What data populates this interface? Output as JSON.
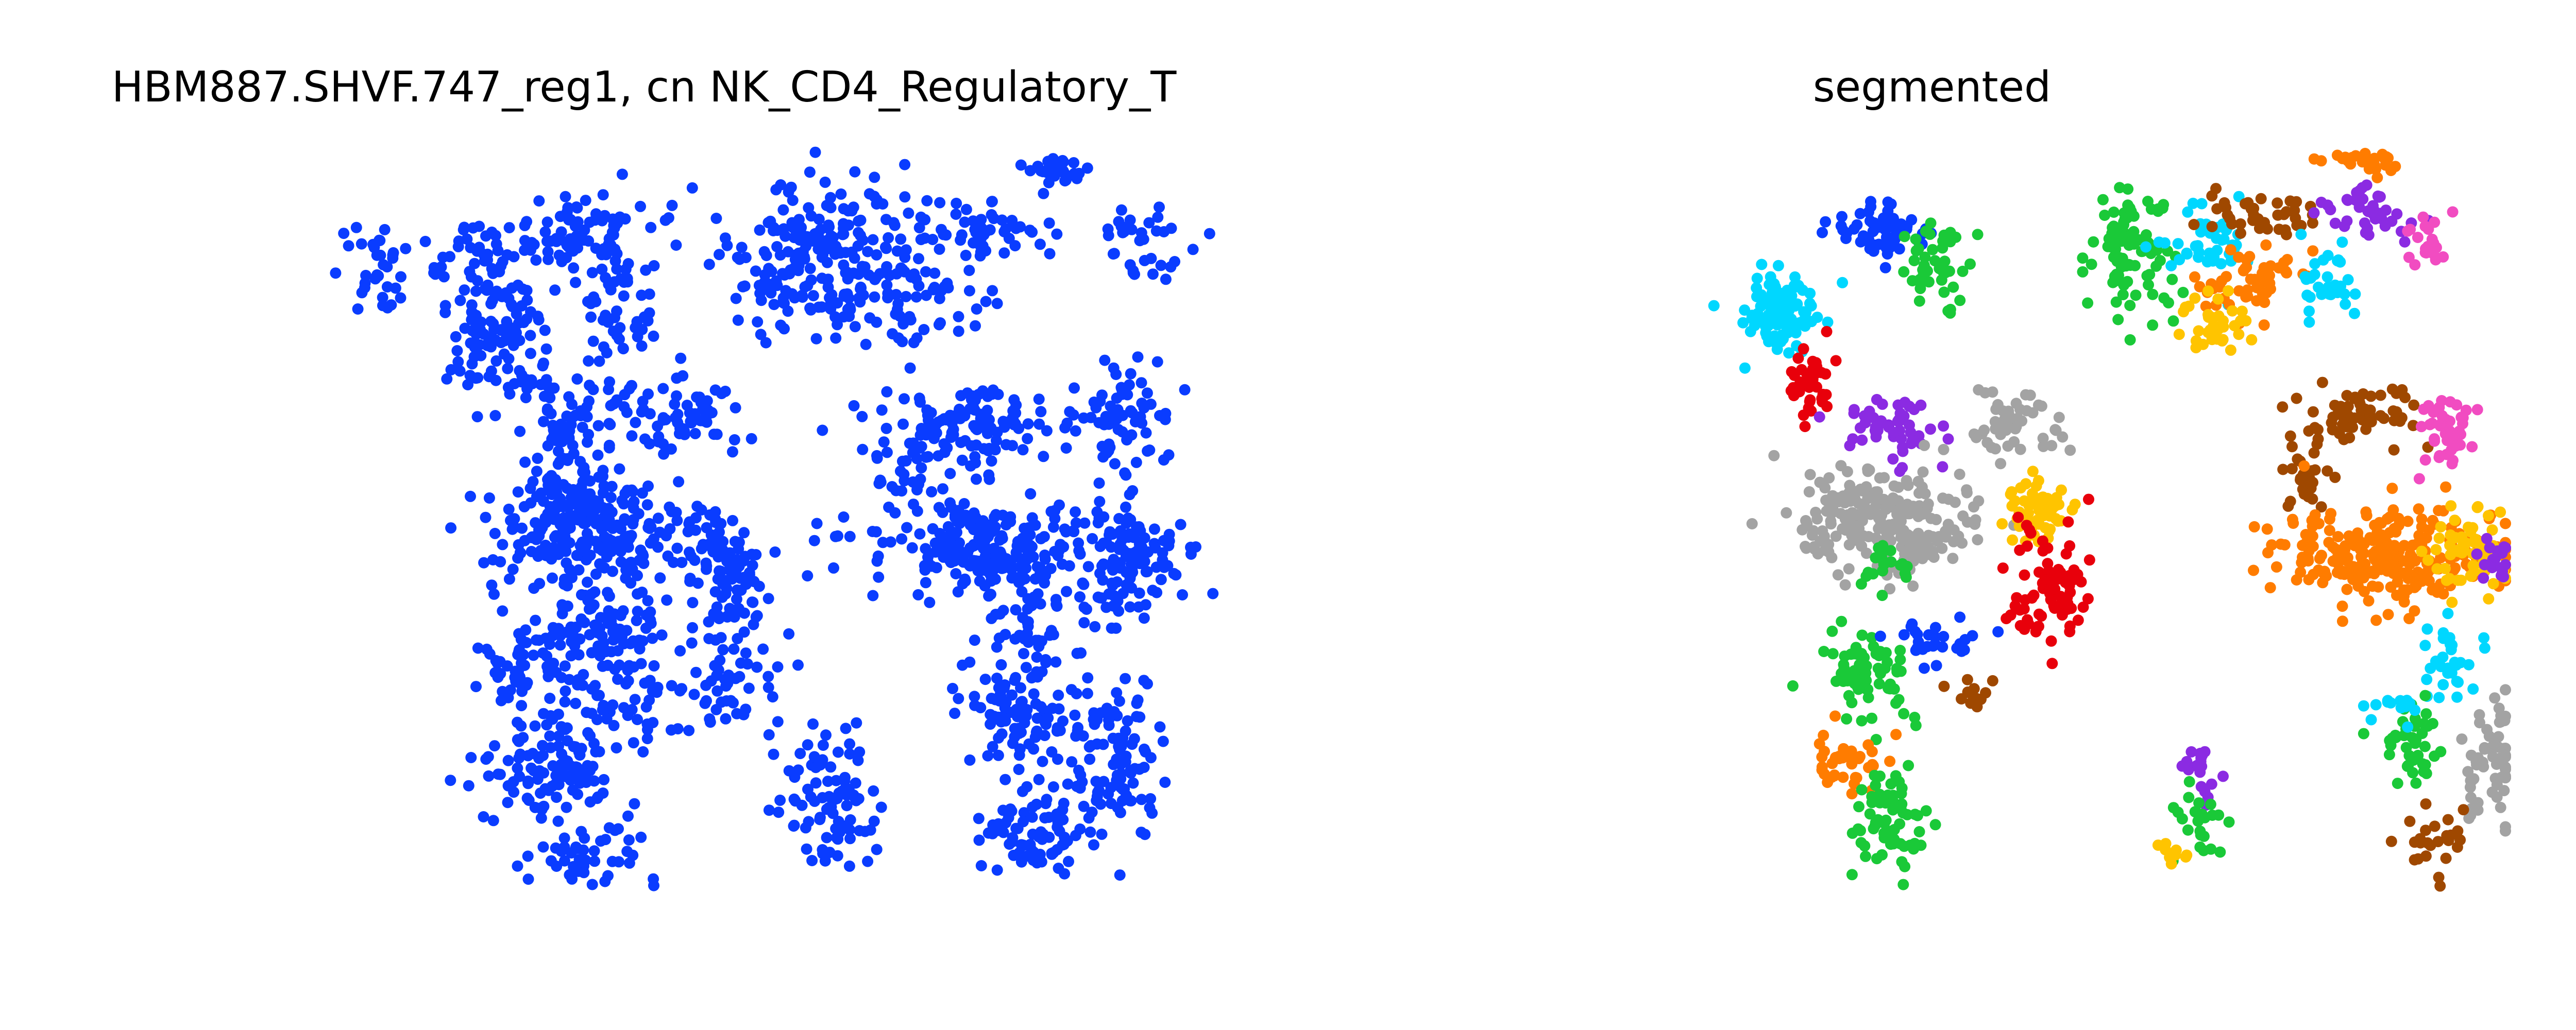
{
  "chart_data": [
    {
      "type": "scatter",
      "title": "HBM887.SHVF.747_reg1, cn NK_CD4_Regulatory_T",
      "xlabel": "",
      "ylabel": "",
      "axes_visible": false,
      "grid": false,
      "legend": "none",
      "point_color": "#0a3cff",
      "xlim": [
        0,
        100
      ],
      "ylim": [
        0,
        100
      ],
      "clusters": [
        {
          "c": [
            3,
            85
          ],
          "s": [
            2.0,
            3.5
          ],
          "n": 35
        },
        {
          "c": [
            13,
            87
          ],
          "s": [
            2.5,
            1.8
          ],
          "n": 25
        },
        {
          "c": [
            17,
            75
          ],
          "s": [
            3.0,
            5.5
          ],
          "n": 120
        },
        {
          "c": [
            27,
            89
          ],
          "s": [
            4.5,
            2.8
          ],
          "n": 90
        },
        {
          "c": [
            31,
            80
          ],
          "s": [
            2.5,
            3.5
          ],
          "n": 45
        },
        {
          "c": [
            27,
            65
          ],
          "s": [
            3.5,
            2.8
          ],
          "n": 60
        },
        {
          "c": [
            39,
            65
          ],
          "s": [
            3.0,
            2.8
          ],
          "n": 55
        },
        {
          "c": [
            26,
            55
          ],
          "s": [
            3.5,
            2.8
          ],
          "n": 80
        },
        {
          "c": [
            27,
            48
          ],
          "s": [
            5.5,
            4.0
          ],
          "n": 200
        },
        {
          "c": [
            42,
            48
          ],
          "s": [
            2.2,
            2.5
          ],
          "n": 40
        },
        {
          "c": [
            45,
            41
          ],
          "s": [
            2.3,
            4.5
          ],
          "n": 70
        },
        {
          "c": [
            30,
            35
          ],
          "s": [
            4.0,
            3.0
          ],
          "n": 80
        },
        {
          "c": [
            22,
            30
          ],
          "s": [
            3.5,
            3.5
          ],
          "n": 70
        },
        {
          "c": [
            24,
            17
          ],
          "s": [
            4.0,
            3.5
          ],
          "n": 110
        },
        {
          "c": [
            27,
            5
          ],
          "s": [
            3.5,
            2.0
          ],
          "n": 45
        },
        {
          "c": [
            33,
            26
          ],
          "s": [
            4.0,
            2.5
          ],
          "n": 40
        },
        {
          "c": [
            44,
            28
          ],
          "s": [
            3.5,
            3.0
          ],
          "n": 45
        },
        {
          "c": [
            56,
            14
          ],
          "s": [
            3.0,
            5.0
          ],
          "n": 90
        },
        {
          "c": [
            55,
            86
          ],
          "s": [
            6.5,
            4.5
          ],
          "n": 220
        },
        {
          "c": [
            65,
            80
          ],
          "s": [
            5.0,
            3.0
          ],
          "n": 60
        },
        {
          "c": [
            74,
            90
          ],
          "s": [
            3.5,
            2.2
          ],
          "n": 50
        },
        {
          "c": [
            83,
            98
          ],
          "s": [
            2.0,
            1.0
          ],
          "n": 25
        },
        {
          "c": [
            93,
            89
          ],
          "s": [
            2.5,
            3.0
          ],
          "n": 35
        },
        {
          "c": [
            73,
            64
          ],
          "s": [
            6.5,
            2.5
          ],
          "n": 110
        },
        {
          "c": [
            91,
            65
          ],
          "s": [
            2.5,
            4.0
          ],
          "n": 60
        },
        {
          "c": [
            67,
            57
          ],
          "s": [
            3.0,
            3.0
          ],
          "n": 40
        },
        {
          "c": [
            75,
            47
          ],
          "s": [
            7.5,
            3.0
          ],
          "n": 240
        },
        {
          "c": [
            92,
            45
          ],
          "s": [
            3.0,
            4.5
          ],
          "n": 110
        },
        {
          "c": [
            80,
            38
          ],
          "s": [
            3.0,
            4.0
          ],
          "n": 50
        },
        {
          "c": [
            79,
            25
          ],
          "s": [
            4.0,
            4.0
          ],
          "n": 100
        },
        {
          "c": [
            90,
            18
          ],
          "s": [
            2.5,
            5.0
          ],
          "n": 100
        },
        {
          "c": [
            80,
            8
          ],
          "s": [
            3.5,
            3.0
          ],
          "n": 80
        }
      ]
    },
    {
      "type": "scatter",
      "title": "segmented",
      "xlabel": "",
      "ylabel": "",
      "axes_visible": false,
      "grid": false,
      "legend": "none",
      "xlim": [
        0,
        100
      ],
      "ylim": [
        0,
        100
      ],
      "clusters": [
        {
          "c": [
            17,
            79
          ],
          "s": [
            2.5,
            2.5
          ],
          "n": 110,
          "color": "#00d7ff"
        },
        {
          "c": [
            20,
            69
          ],
          "s": [
            1.5,
            2.5
          ],
          "n": 40,
          "color": "#e8000b"
        },
        {
          "c": [
            28,
            90
          ],
          "s": [
            3.5,
            1.8
          ],
          "n": 60,
          "color": "#0a3cff"
        },
        {
          "c": [
            35,
            84
          ],
          "s": [
            2.0,
            3.0
          ],
          "n": 45,
          "color": "#1ac938"
        },
        {
          "c": [
            30,
            63
          ],
          "s": [
            3.0,
            2.0
          ],
          "n": 55,
          "color": "#8b2be2"
        },
        {
          "c": [
            45,
            63
          ],
          "s": [
            2.8,
            2.2
          ],
          "n": 50,
          "color": "#a3a3a3"
        },
        {
          "c": [
            29,
            51
          ],
          "s": [
            5.0,
            3.5
          ],
          "n": 220,
          "color": "#a3a3a3"
        },
        {
          "c": [
            47,
            52
          ],
          "s": [
            2.0,
            2.2
          ],
          "n": 55,
          "color": "#ffc400"
        },
        {
          "c": [
            48,
            42
          ],
          "s": [
            2.5,
            4.0
          ],
          "n": 80,
          "color": "#e8000b"
        },
        {
          "c": [
            29,
            45
          ],
          "s": [
            1.5,
            2.0
          ],
          "n": 20,
          "color": "#1ac938"
        },
        {
          "c": [
            27,
            30
          ],
          "s": [
            3.0,
            3.0
          ],
          "n": 70,
          "color": "#1ac938"
        },
        {
          "c": [
            35,
            34
          ],
          "s": [
            2.5,
            1.5
          ],
          "n": 30,
          "color": "#0a3cff"
        },
        {
          "c": [
            40,
            28
          ],
          "s": [
            1.5,
            1.5
          ],
          "n": 12,
          "color": "#9f4800"
        },
        {
          "c": [
            24,
            18
          ],
          "s": [
            2.5,
            2.0
          ],
          "n": 40,
          "color": "#ff7c00"
        },
        {
          "c": [
            30,
            10
          ],
          "s": [
            2.5,
            4.0
          ],
          "n": 70,
          "color": "#1ac938"
        },
        {
          "c": [
            58,
            86
          ],
          "s": [
            2.5,
            4.5
          ],
          "n": 90,
          "color": "#1ac938"
        },
        {
          "c": [
            67,
            88
          ],
          "s": [
            2.5,
            2.5
          ],
          "n": 45,
          "color": "#00d7ff"
        },
        {
          "c": [
            74,
            92
          ],
          "s": [
            3.5,
            1.5
          ],
          "n": 40,
          "color": "#9f4800"
        },
        {
          "c": [
            72,
            83
          ],
          "s": [
            3.0,
            2.2
          ],
          "n": 50,
          "color": "#ff7c00"
        },
        {
          "c": [
            68,
            77
          ],
          "s": [
            2.0,
            2.0
          ],
          "n": 35,
          "color": "#ffc400"
        },
        {
          "c": [
            81,
            83
          ],
          "s": [
            2.0,
            2.5
          ],
          "n": 30,
          "color": "#00d7ff"
        },
        {
          "c": [
            85,
            92
          ],
          "s": [
            3.0,
            1.5
          ],
          "n": 40,
          "color": "#8b2be2"
        },
        {
          "c": [
            86,
            99
          ],
          "s": [
            2.5,
            0.8
          ],
          "n": 25,
          "color": "#ff7c00"
        },
        {
          "c": [
            85,
            65
          ],
          "s": [
            4.0,
            2.0
          ],
          "n": 60,
          "color": "#9f4800"
        },
        {
          "c": [
            95,
            63
          ],
          "s": [
            2.0,
            3.0
          ],
          "n": 40,
          "color": "#f14cc1"
        },
        {
          "c": [
            79,
            57
          ],
          "s": [
            1.5,
            2.5
          ],
          "n": 30,
          "color": "#9f4800"
        },
        {
          "c": [
            88,
            46
          ],
          "s": [
            7.0,
            3.5
          ],
          "n": 260,
          "color": "#ff7c00"
        },
        {
          "c": [
            98,
            47
          ],
          "s": [
            2.5,
            3.5
          ],
          "n": 60,
          "color": "#ffc400"
        },
        {
          "c": [
            101,
            45
          ],
          "s": [
            1.0,
            2.0
          ],
          "n": 20,
          "color": "#8b2be2"
        },
        {
          "c": [
            96,
            33
          ],
          "s": [
            2.0,
            3.0
          ],
          "n": 30,
          "color": "#00d7ff"
        },
        {
          "c": [
            91,
            20
          ],
          "s": [
            2.0,
            3.0
          ],
          "n": 40,
          "color": "#1ac938"
        },
        {
          "c": [
            100,
            18
          ],
          "s": [
            2.0,
            4.0
          ],
          "n": 60,
          "color": "#a3a3a3"
        },
        {
          "c": [
            89,
            26
          ],
          "s": [
            2.0,
            1.5
          ],
          "n": 15,
          "color": "#00d7ff"
        },
        {
          "c": [
            93,
            8
          ],
          "s": [
            2.0,
            2.0
          ],
          "n": 25,
          "color": "#9f4800"
        },
        {
          "c": [
            66,
            16
          ],
          "s": [
            1.5,
            2.0
          ],
          "n": 20,
          "color": "#8b2be2"
        },
        {
          "c": [
            66,
            10
          ],
          "s": [
            1.5,
            2.5
          ],
          "n": 25,
          "color": "#1ac938"
        },
        {
          "c": [
            63,
            6
          ],
          "s": [
            1.0,
            1.0
          ],
          "n": 10,
          "color": "#ffc400"
        },
        {
          "c": [
            93,
            88
          ],
          "s": [
            1.5,
            2.0
          ],
          "n": 20,
          "color": "#f14cc1"
        }
      ]
    }
  ]
}
